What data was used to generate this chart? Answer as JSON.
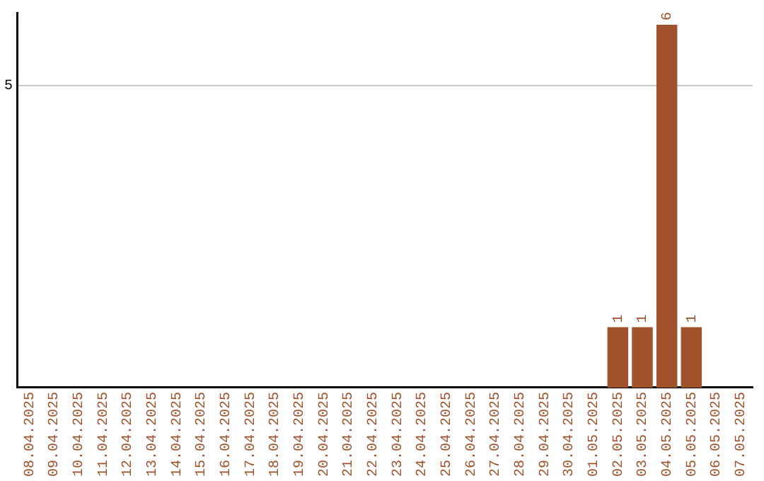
{
  "chart_data": {
    "type": "bar",
    "categories": [
      "08.04.2025",
      "09.04.2025",
      "10.04.2025",
      "11.04.2025",
      "12.04.2025",
      "13.04.2025",
      "14.04.2025",
      "15.04.2025",
      "16.04.2025",
      "17.04.2025",
      "18.04.2025",
      "19.04.2025",
      "20.04.2025",
      "21.04.2025",
      "22.04.2025",
      "23.04.2025",
      "24.04.2025",
      "25.04.2025",
      "26.04.2025",
      "27.04.2025",
      "28.04.2025",
      "29.04.2025",
      "30.04.2025",
      "01.05.2025",
      "02.05.2025",
      "03.05.2025",
      "04.05.2025",
      "05.05.2025",
      "06.05.2025",
      "07.05.2025"
    ],
    "values": [
      null,
      null,
      null,
      null,
      null,
      null,
      null,
      null,
      null,
      null,
      null,
      null,
      null,
      null,
      null,
      null,
      null,
      null,
      null,
      null,
      null,
      null,
      null,
      null,
      1,
      1,
      6,
      1,
      null,
      null
    ],
    "color": "#a0522d",
    "ylim": [
      0,
      6.2
    ],
    "yticks": [
      5
    ],
    "grid": "y",
    "data_labels": true,
    "legend": false
  }
}
